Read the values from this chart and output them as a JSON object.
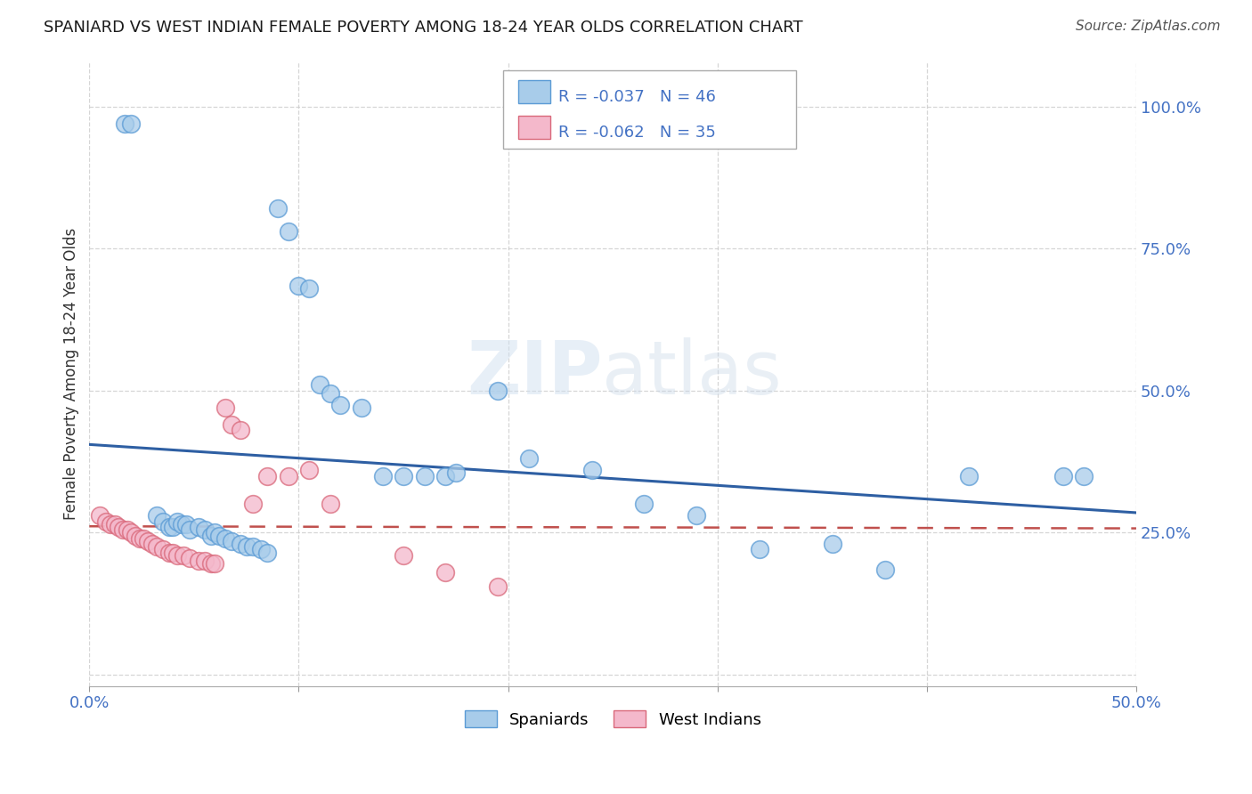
{
  "title": "SPANIARD VS WEST INDIAN FEMALE POVERTY AMONG 18-24 YEAR OLDS CORRELATION CHART",
  "source": "Source: ZipAtlas.com",
  "ylabel": "Female Poverty Among 18-24 Year Olds",
  "xlim": [
    0.0,
    0.5
  ],
  "ylim": [
    -0.02,
    1.08
  ],
  "xticks": [
    0.0,
    0.1,
    0.2,
    0.3,
    0.4,
    0.5
  ],
  "yticks": [
    0.0,
    0.25,
    0.5,
    0.75,
    1.0
  ],
  "xtick_labels": [
    "0.0%",
    "",
    "",
    "",
    "",
    "50.0%"
  ],
  "ytick_labels_right": [
    "",
    "25.0%",
    "50.0%",
    "75.0%",
    "100.0%"
  ],
  "spaniard_color": "#A8CCEA",
  "spaniard_edge": "#5B9BD5",
  "west_indian_color": "#F4B8CB",
  "west_indian_edge": "#D9687A",
  "trend_spaniard_color": "#2E5FA3",
  "trend_west_indian_color": "#C0504D",
  "legend_r_spaniard": "R = -0.037",
  "legend_n_spaniard": "N = 46",
  "legend_r_west_indian": "R = -0.062",
  "legend_n_west_indian": "N = 35",
  "spaniard_x": [
    0.017,
    0.02,
    0.032,
    0.035,
    0.038,
    0.04,
    0.042,
    0.044,
    0.046,
    0.048,
    0.052,
    0.055,
    0.058,
    0.06,
    0.062,
    0.065,
    0.068,
    0.072,
    0.075,
    0.078,
    0.082,
    0.085,
    0.09,
    0.095,
    0.1,
    0.105,
    0.11,
    0.115,
    0.12,
    0.13,
    0.14,
    0.15,
    0.16,
    0.17,
    0.175,
    0.195,
    0.21,
    0.24,
    0.265,
    0.29,
    0.32,
    0.355,
    0.38,
    0.42,
    0.465,
    0.475
  ],
  "spaniard_y": [
    0.97,
    0.97,
    0.28,
    0.27,
    0.26,
    0.26,
    0.27,
    0.265,
    0.265,
    0.255,
    0.26,
    0.255,
    0.245,
    0.25,
    0.245,
    0.24,
    0.235,
    0.23,
    0.225,
    0.225,
    0.22,
    0.215,
    0.82,
    0.78,
    0.685,
    0.68,
    0.51,
    0.495,
    0.475,
    0.47,
    0.35,
    0.35,
    0.35,
    0.35,
    0.355,
    0.5,
    0.38,
    0.36,
    0.3,
    0.28,
    0.22,
    0.23,
    0.185,
    0.35,
    0.35,
    0.35
  ],
  "west_indian_x": [
    0.005,
    0.008,
    0.01,
    0.012,
    0.014,
    0.016,
    0.018,
    0.02,
    0.022,
    0.024,
    0.026,
    0.028,
    0.03,
    0.032,
    0.035,
    0.038,
    0.04,
    0.042,
    0.045,
    0.048,
    0.052,
    0.055,
    0.058,
    0.06,
    0.065,
    0.068,
    0.072,
    0.078,
    0.085,
    0.095,
    0.105,
    0.115,
    0.15,
    0.17,
    0.195
  ],
  "west_indian_y": [
    0.28,
    0.27,
    0.265,
    0.265,
    0.26,
    0.255,
    0.255,
    0.25,
    0.245,
    0.24,
    0.24,
    0.235,
    0.23,
    0.225,
    0.22,
    0.215,
    0.215,
    0.21,
    0.21,
    0.205,
    0.2,
    0.2,
    0.195,
    0.195,
    0.47,
    0.44,
    0.43,
    0.3,
    0.35,
    0.35,
    0.36,
    0.3,
    0.21,
    0.18,
    0.155
  ],
  "watermark_zip": "ZIP",
  "watermark_atlas": "atlas",
  "background_color": "#FFFFFF",
  "grid_color": "#CCCCCC"
}
